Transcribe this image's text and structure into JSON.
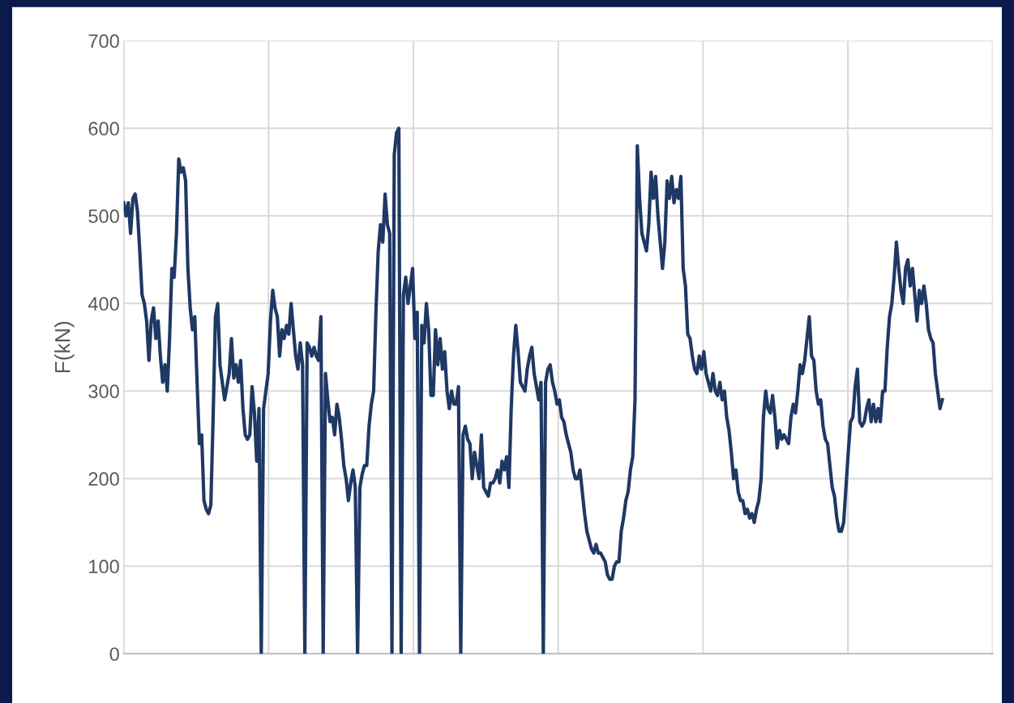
{
  "chart_data": {
    "type": "line",
    "ylabel": "F(kN)",
    "categories": [
      null,
      null,
      null,
      null,
      null,
      null,
      null,
      null,
      null,
      null,
      null,
      null,
      null,
      null,
      null,
      null,
      null,
      null,
      null,
      null,
      null,
      null,
      null,
      null,
      null,
      null,
      null,
      null,
      null,
      null,
      null,
      null,
      null,
      null,
      null,
      null,
      null,
      null,
      null,
      null,
      null,
      null,
      null,
      null,
      null,
      null,
      null,
      null,
      null,
      null,
      null,
      null,
      null,
      null,
      null,
      null,
      null,
      null,
      null,
      null,
      null,
      null,
      null,
      null,
      null,
      null,
      null,
      null,
      null,
      null,
      null,
      null,
      null,
      null,
      null,
      null,
      null,
      null,
      null,
      null,
      null,
      null,
      null,
      null,
      null,
      null,
      null,
      null,
      null,
      null,
      null,
      null,
      null,
      null,
      null,
      null,
      null,
      null,
      null,
      null,
      null,
      null,
      null,
      null,
      null,
      null,
      null,
      null,
      null,
      null,
      null,
      null,
      null,
      null,
      null,
      null,
      null,
      null,
      null,
      null,
      null,
      null,
      null,
      null,
      null,
      null,
      null,
      null,
      null,
      null,
      null,
      null,
      null,
      null,
      null,
      null,
      null,
      null,
      null,
      null,
      null,
      null,
      null,
      null,
      null,
      null,
      null,
      null,
      null,
      null,
      null,
      null,
      null,
      null,
      null,
      null,
      null,
      null,
      null,
      null,
      null,
      null,
      null,
      null,
      null,
      null,
      null,
      null,
      null,
      null,
      null,
      null,
      null,
      null,
      null,
      null,
      null,
      null,
      null,
      null,
      null,
      null,
      null,
      null,
      null,
      null,
      null,
      null,
      null,
      null,
      null,
      null,
      null,
      null,
      null,
      null,
      null,
      null,
      null,
      null,
      null,
      null,
      null,
      null,
      null,
      null,
      null,
      null,
      null,
      null,
      null,
      null,
      null,
      null,
      null,
      null,
      null,
      null,
      null,
      null,
      null,
      null,
      null,
      null,
      null,
      null,
      null,
      null,
      null,
      null,
      null,
      null,
      null,
      null,
      null,
      null,
      null,
      null,
      null,
      null,
      null,
      null,
      null,
      null,
      null,
      null,
      null,
      null,
      null,
      null,
      null,
      null,
      null,
      null,
      null,
      null,
      null,
      null,
      null,
      null,
      null,
      null,
      null,
      null,
      null,
      null,
      null,
      null,
      null,
      null,
      null,
      null,
      null,
      null,
      null,
      null,
      null,
      null,
      null,
      null,
      null,
      null,
      null,
      null,
      null,
      null,
      null,
      null,
      null,
      null,
      null,
      null,
      null,
      null,
      null,
      null,
      null,
      null,
      null,
      null,
      null,
      null,
      null,
      null,
      null,
      null,
      null,
      null,
      null,
      null,
      null,
      null,
      null,
      null,
      null,
      null,
      null,
      null,
      null,
      null,
      null,
      null,
      null,
      null,
      null,
      null,
      null,
      null,
      null,
      null,
      null,
      null,
      null,
      null,
      null,
      null,
      null,
      null,
      null,
      null,
      null,
      null,
      null,
      null,
      null,
      null,
      null,
      null,
      null,
      null,
      null,
      null,
      null,
      null,
      null,
      null,
      null,
      null,
      null,
      null,
      null,
      null,
      null,
      null,
      null,
      null,
      null,
      null,
      null,
      null,
      null,
      null,
      null,
      null,
      null,
      null,
      null,
      null,
      null,
      null
    ],
    "series": [
      {
        "color": "#1f3864",
        "values": [
          515,
          500,
          515,
          480,
          520,
          525,
          505,
          460,
          410,
          400,
          380,
          335,
          380,
          395,
          360,
          380,
          340,
          310,
          330,
          300,
          360,
          440,
          430,
          480,
          565,
          550,
          555,
          540,
          440,
          395,
          370,
          385,
          310,
          240,
          250,
          175,
          165,
          160,
          170,
          270,
          385,
          400,
          330,
          310,
          290,
          305,
          320,
          360,
          315,
          330,
          310,
          335,
          280,
          250,
          245,
          250,
          305,
          275,
          220,
          280,
          0,
          280,
          300,
          320,
          380,
          415,
          395,
          385,
          340,
          370,
          360,
          375,
          365,
          400,
          370,
          340,
          325,
          355,
          330,
          0,
          355,
          350,
          340,
          350,
          340,
          335,
          385,
          0,
          320,
          290,
          265,
          270,
          250,
          285,
          270,
          245,
          215,
          200,
          175,
          195,
          210,
          190,
          0,
          190,
          205,
          215,
          215,
          260,
          285,
          300,
          390,
          460,
          490,
          470,
          525,
          490,
          480,
          0,
          570,
          595,
          600,
          0,
          410,
          430,
          400,
          420,
          440,
          360,
          390,
          0,
          375,
          355,
          400,
          370,
          295,
          295,
          370,
          330,
          360,
          325,
          345,
          300,
          280,
          300,
          285,
          285,
          305,
          0,
          250,
          260,
          245,
          240,
          200,
          230,
          215,
          200,
          250,
          190,
          185,
          180,
          195,
          195,
          200,
          210,
          195,
          220,
          210,
          225,
          190,
          280,
          340,
          375,
          345,
          310,
          305,
          300,
          325,
          340,
          350,
          320,
          305,
          290,
          310,
          0,
          310,
          325,
          330,
          310,
          300,
          285,
          290,
          270,
          265,
          250,
          240,
          230,
          210,
          200,
          200,
          210,
          185,
          160,
          140,
          130,
          120,
          115,
          125,
          115,
          115,
          110,
          105,
          90,
          85,
          85,
          100,
          105,
          105,
          140,
          155,
          175,
          185,
          210,
          225,
          290,
          580,
          520,
          480,
          470,
          460,
          490,
          550,
          520,
          545,
          500,
          470,
          440,
          470,
          540,
          520,
          545,
          515,
          530,
          520,
          545,
          440,
          420,
          365,
          360,
          340,
          325,
          320,
          340,
          325,
          345,
          320,
          310,
          300,
          320,
          300,
          295,
          310,
          290,
          300,
          270,
          255,
          230,
          200,
          210,
          185,
          175,
          175,
          160,
          165,
          155,
          160,
          150,
          165,
          175,
          200,
          270,
          300,
          280,
          275,
          295,
          270,
          235,
          255,
          245,
          250,
          245,
          240,
          270,
          285,
          275,
          300,
          330,
          320,
          335,
          360,
          385,
          340,
          335,
          300,
          285,
          290,
          260,
          245,
          240,
          215,
          190,
          180,
          155,
          140,
          140,
          150,
          190,
          230,
          265,
          270,
          305,
          325,
          265,
          260,
          265,
          280,
          290,
          265,
          285,
          265,
          280,
          265,
          300,
          300,
          350,
          385,
          400,
          430,
          470,
          440,
          415,
          400,
          440,
          450,
          420,
          440,
          410,
          380,
          415,
          400,
          420,
          400,
          370,
          360,
          355,
          320,
          300,
          280,
          290,
          null,
          null,
          null,
          null,
          null,
          null,
          null,
          null,
          null,
          null,
          null,
          null,
          null,
          null,
          null,
          null,
          null,
          null,
          null,
          null,
          null,
          null
        ]
      }
    ],
    "ylim": [
      0,
      700
    ],
    "yticks": [
      0,
      100,
      200,
      300,
      400,
      500,
      600,
      700
    ],
    "grid": true,
    "tick_labels": "y",
    "marker": "none",
    "line_style": "solid"
  }
}
